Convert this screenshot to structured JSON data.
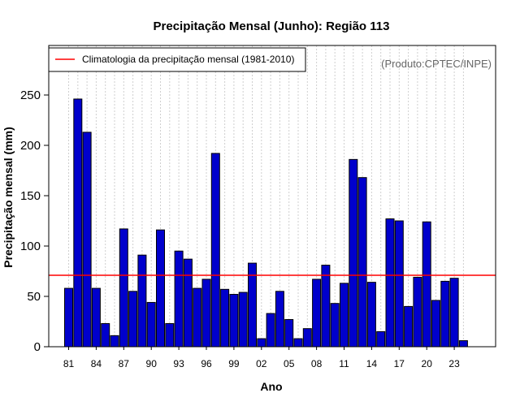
{
  "chart_data": {
    "type": "bar",
    "title": "Precipitação Mensal (Junho): Região 113",
    "xlabel": "Ano",
    "ylabel": "Precipitação mensal (mm)",
    "credit": "(Produto:CPTEC/INPE)",
    "ylim": [
      0,
      290
    ],
    "yticks": [
      0,
      50,
      100,
      150,
      200,
      250
    ],
    "x_tick_labels": [
      "81",
      "84",
      "87",
      "90",
      "93",
      "96",
      "99",
      "02",
      "05",
      "08",
      "11",
      "14",
      "17",
      "20",
      "23"
    ],
    "categories": [
      "1981",
      "1982",
      "1983",
      "1984",
      "1985",
      "1986",
      "1987",
      "1988",
      "1989",
      "1990",
      "1991",
      "1992",
      "1993",
      "1994",
      "1995",
      "1996",
      "1997",
      "1998",
      "1999",
      "2000",
      "2001",
      "2002",
      "2003",
      "2004",
      "2005",
      "2006",
      "2007",
      "2008",
      "2009",
      "2010",
      "2011",
      "2012",
      "2013",
      "2014",
      "2015",
      "2016",
      "2017",
      "2018",
      "2019",
      "2020",
      "2021",
      "2022",
      "2023",
      "2024"
    ],
    "values": [
      58,
      246,
      213,
      58,
      23,
      11,
      117,
      55,
      91,
      44,
      116,
      23,
      95,
      87,
      58,
      67,
      192,
      57,
      52,
      54,
      83,
      8,
      33,
      55,
      27,
      8,
      18,
      67,
      81,
      43,
      63,
      186,
      168,
      64,
      15,
      127,
      125,
      40,
      69,
      124,
      46,
      65,
      68,
      6
    ],
    "bar_color": "#0000cc",
    "bar_edge_color": "#000000",
    "grid": true,
    "reference_line": {
      "label": "Climatologia da precipitação mensal (1981-2010)",
      "value": 71,
      "color": "#ff0000"
    },
    "legend_position": "top-left"
  }
}
